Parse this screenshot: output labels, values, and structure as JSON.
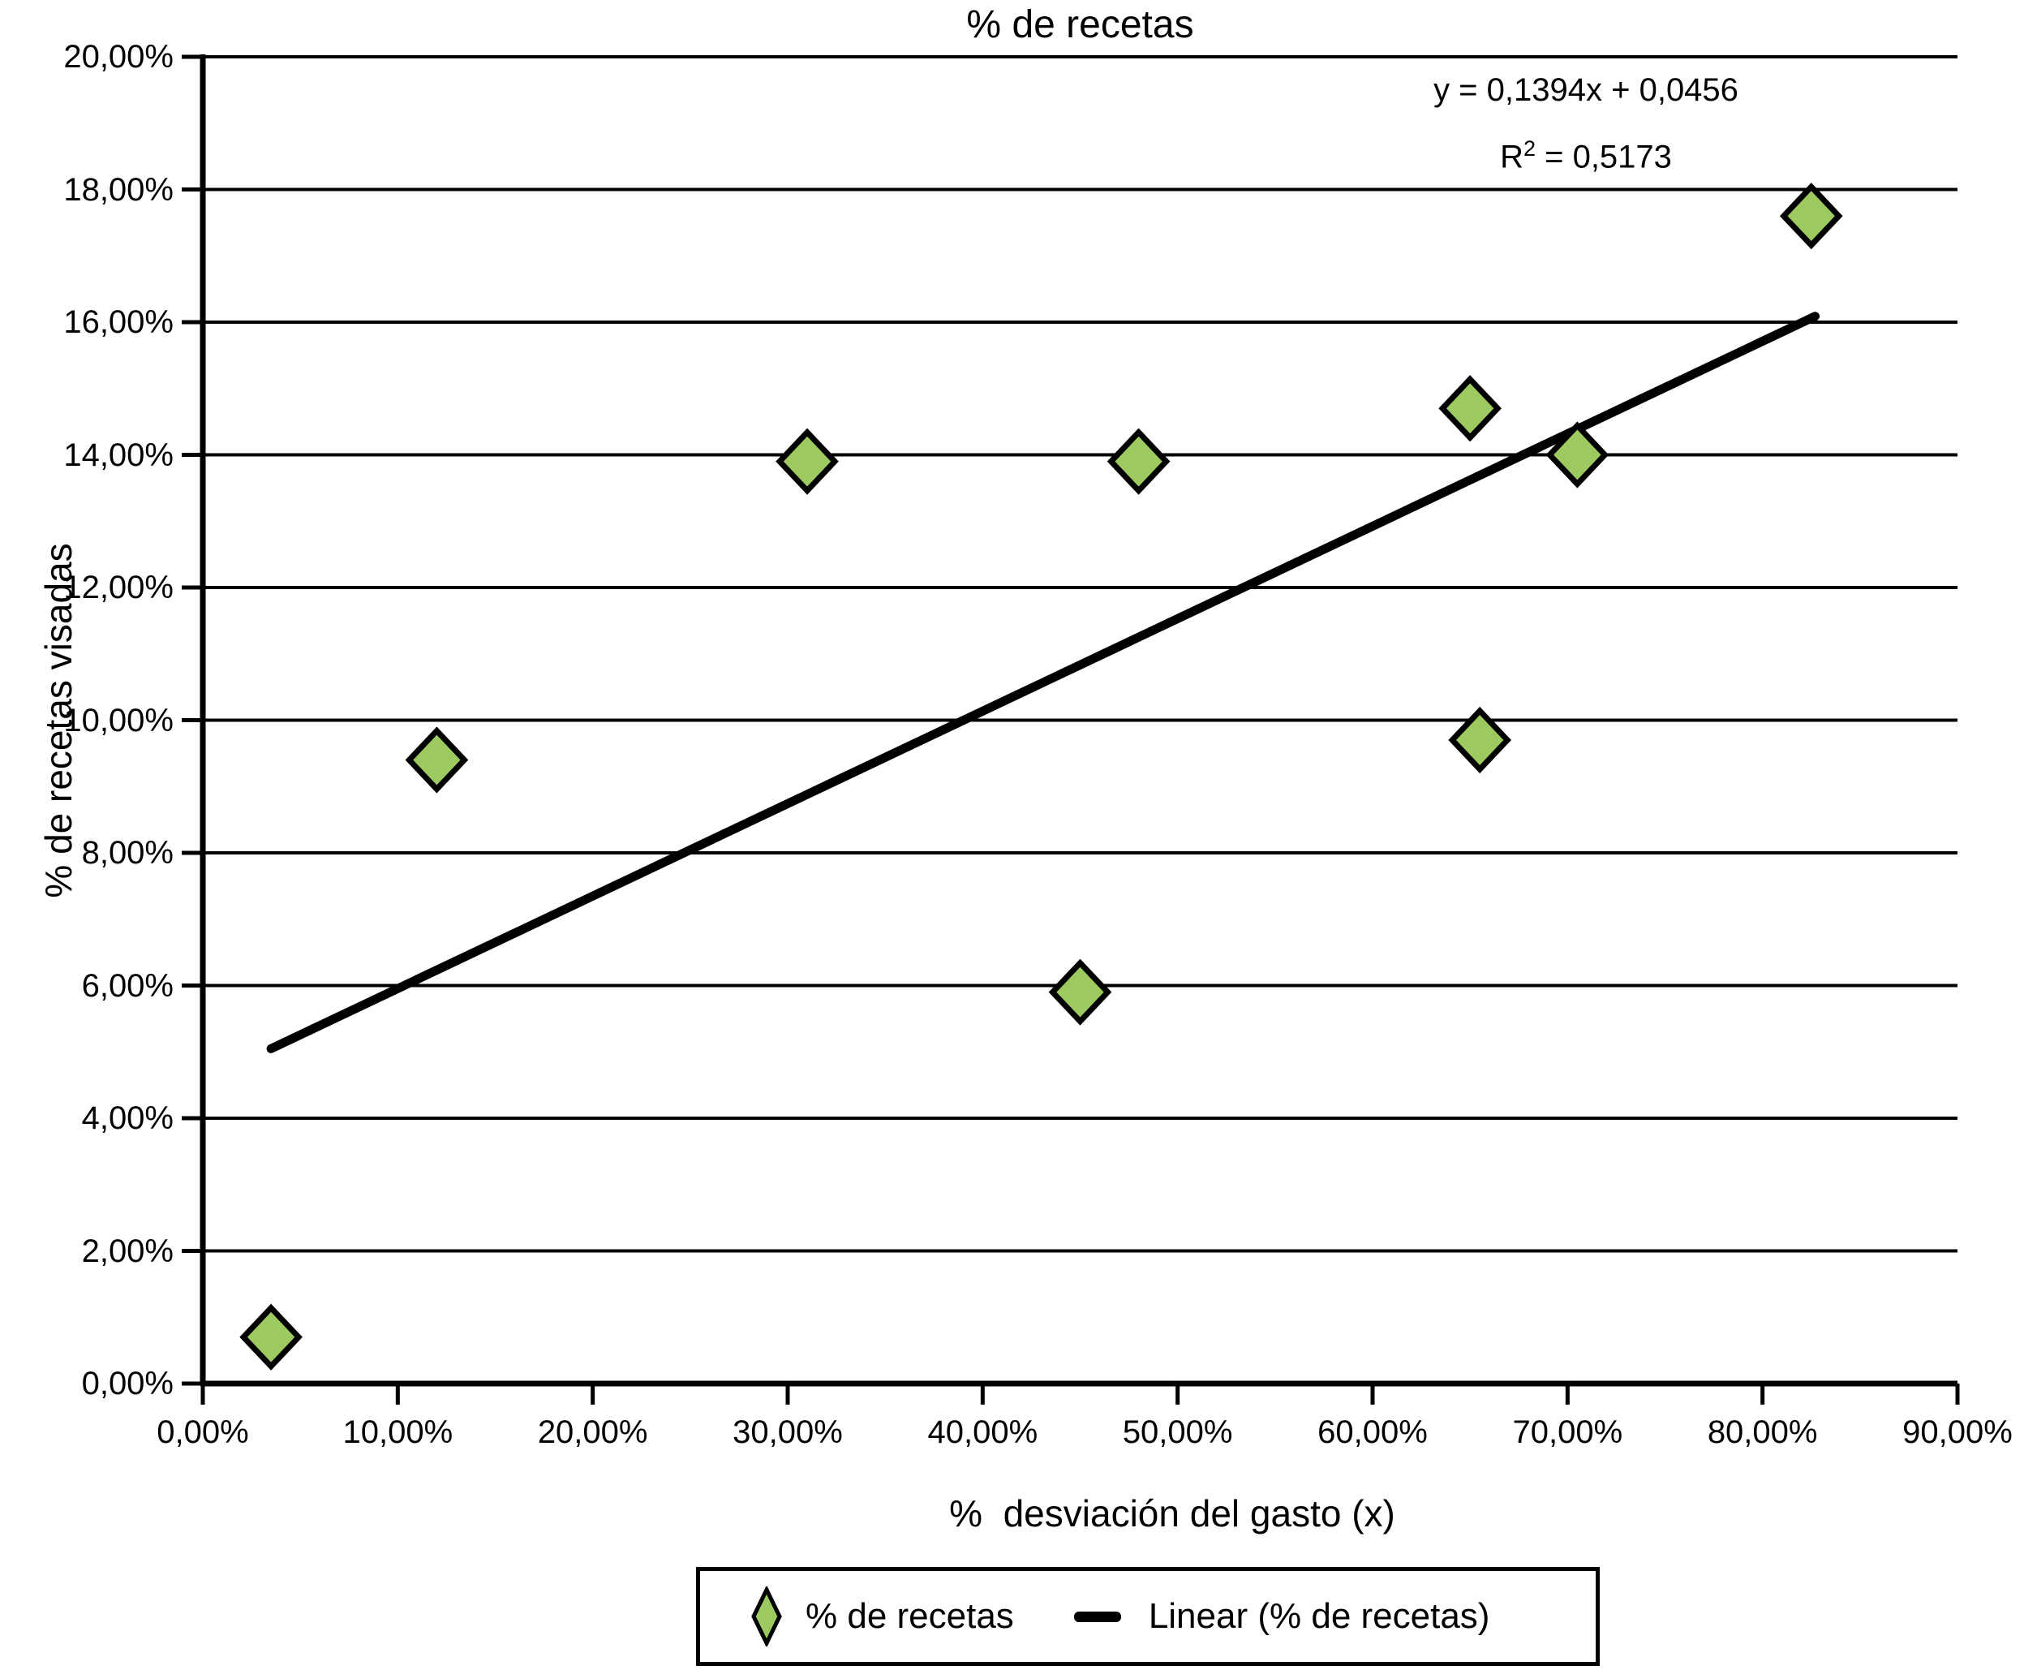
{
  "chart": {
    "title": "% de recetas",
    "equation_line": "y = 0,1394x + 0,0456",
    "r2": {
      "base": "R",
      "sup": "2",
      "rest": " = 0,5173"
    },
    "x_axis_label": "%  desviación del gasto (x)",
    "y_axis_label": "% de recetas visadas",
    "legend": {
      "item1": "% de recetas",
      "item2": "Linear (% de recetas)"
    },
    "colors": {
      "marker_fill": "#9CCA60",
      "marker_stroke": "#000000",
      "trend_line": "#000000",
      "grid_line": "#000000",
      "axis": "#000000",
      "background": "#FFFFFF",
      "text": "#000000"
    }
  },
  "chart_data": {
    "type": "scatter",
    "title": "% de recetas",
    "xlabel": "%  desviación del gasto (x)",
    "ylabel": "% de recetas visadas",
    "xlim": [
      0,
      90
    ],
    "ylim": [
      0,
      20
    ],
    "grid": "horizontal",
    "legend_position": "bottom",
    "x_ticks": [
      {
        "value": 0,
        "label": "0,00%"
      },
      {
        "value": 10,
        "label": "10,00%"
      },
      {
        "value": 20,
        "label": "20,00%"
      },
      {
        "value": 30,
        "label": "30,00%"
      },
      {
        "value": 40,
        "label": "40,00%"
      },
      {
        "value": 50,
        "label": "50,00%"
      },
      {
        "value": 60,
        "label": "60,00%"
      },
      {
        "value": 70,
        "label": "70,00%"
      },
      {
        "value": 80,
        "label": "80,00%"
      },
      {
        "value": 90,
        "label": "90,00%"
      }
    ],
    "y_ticks": [
      {
        "value": 0,
        "label": "0,00%"
      },
      {
        "value": 2,
        "label": "2,00%"
      },
      {
        "value": 4,
        "label": "4,00%"
      },
      {
        "value": 6,
        "label": "6,00%"
      },
      {
        "value": 8,
        "label": "8,00%"
      },
      {
        "value": 10,
        "label": "10,00%"
      },
      {
        "value": 12,
        "label": "12,00%"
      },
      {
        "value": 14,
        "label": "14,00%"
      },
      {
        "value": 16,
        "label": "16,00%"
      },
      {
        "value": 18,
        "label": "18,00%"
      },
      {
        "value": 20,
        "label": "20,00%"
      }
    ],
    "series": [
      {
        "name": "% de recetas",
        "type": "scatter",
        "marker": "diamond",
        "points": [
          {
            "x": 3.5,
            "y": 0.7
          },
          {
            "x": 12,
            "y": 9.4
          },
          {
            "x": 31,
            "y": 13.9
          },
          {
            "x": 45,
            "y": 5.9
          },
          {
            "x": 48,
            "y": 13.9
          },
          {
            "x": 65,
            "y": 14.7
          },
          {
            "x": 65.5,
            "y": 9.7
          },
          {
            "x": 70.5,
            "y": 14.0
          },
          {
            "x": 82.5,
            "y": 17.6
          }
        ]
      },
      {
        "name": "Linear (% de recetas)",
        "type": "line",
        "slope": 0.1394,
        "intercept_pct": 4.56,
        "x_start": 3.5,
        "x_end": 82.7,
        "equation": "y = 0,1394x + 0,0456",
        "r_squared": "0,5173"
      }
    ]
  }
}
